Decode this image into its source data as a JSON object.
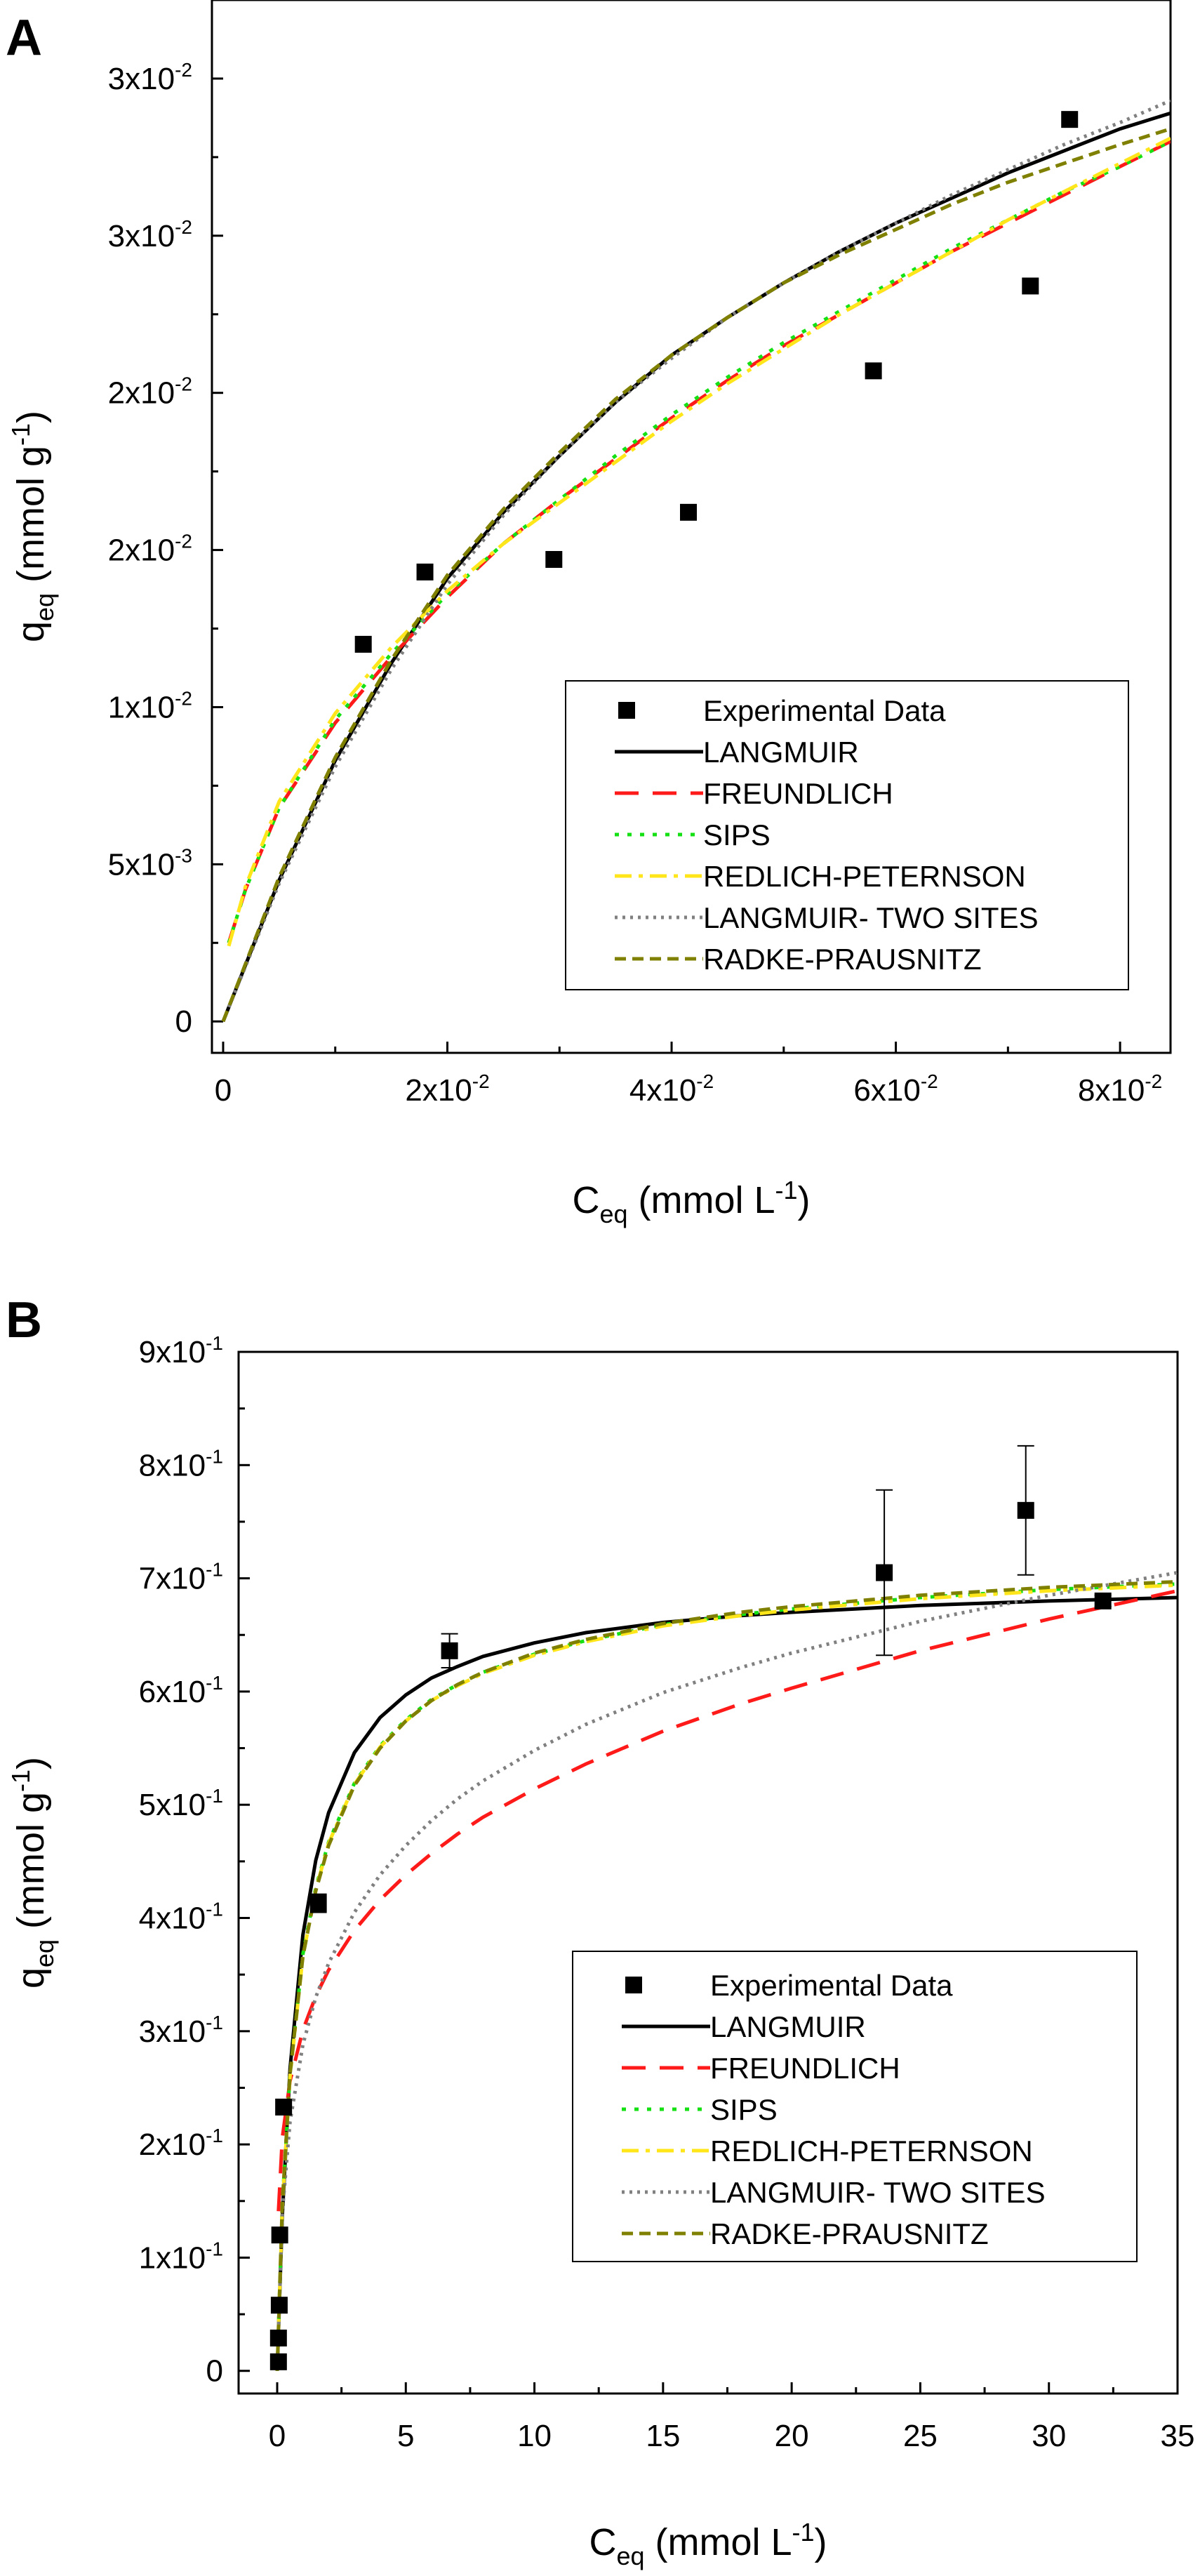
{
  "colors": {
    "experimental": "#000000",
    "langmuir": "#000000",
    "freundlich": "#ff1a1a",
    "sips": "#14e014",
    "redlich_peternson": "#ffe61a",
    "langmuir_two_sites": "#808080",
    "radke_prausnitz": "#808000"
  },
  "chart_data": [
    {
      "panel": "A",
      "type": "scatter",
      "xlabel": {
        "base": "C",
        "sub": "eq",
        "unit_prefix": " (mmol L",
        "unit_sup": "-1",
        "unit_suffix": ")"
      },
      "ylabel": {
        "base": "q",
        "sub": "eq",
        "unit_prefix": " (mmol g",
        "unit_sup": "-1",
        "unit_suffix": ")"
      },
      "xlim": [
        -0.001,
        0.0845
      ],
      "ylim": [
        -0.001,
        0.0325
      ],
      "xticks": [
        {
          "value": 0,
          "mant": "0",
          "exp": ""
        },
        {
          "value": 0.02,
          "mant": "2x10",
          "exp": "-2"
        },
        {
          "value": 0.04,
          "mant": "4x10",
          "exp": "-2"
        },
        {
          "value": 0.06,
          "mant": "6x10",
          "exp": "-2"
        },
        {
          "value": 0.08,
          "mant": "8x10",
          "exp": "-2"
        }
      ],
      "yticks": [
        {
          "value": 0,
          "mant": "0",
          "exp": ""
        },
        {
          "value": 0.005,
          "mant": "5x10",
          "exp": "-3"
        },
        {
          "value": 0.01,
          "mant": "1x10",
          "exp": "-2"
        },
        {
          "value": 0.015,
          "mant": "2x10",
          "exp": "-2"
        },
        {
          "value": 0.02,
          "mant": "2x10",
          "exp": "-2"
        },
        {
          "value": 0.025,
          "mant": "3x10",
          "exp": "-2"
        },
        {
          "value": 0.03,
          "mant": "3x10",
          "exp": "-2"
        }
      ],
      "legend_position": "lower-right",
      "series": [
        {
          "key": "experimental",
          "name": "Experimental Data",
          "style": "marker",
          "x": [
            0.0125,
            0.018,
            0.0295,
            0.0415,
            0.058,
            0.072,
            0.0755
          ],
          "y": [
            0.012,
            0.0143,
            0.0147,
            0.0162,
            0.0207,
            0.0234,
            0.0287
          ]
        },
        {
          "key": "langmuir",
          "name": "LANGMUIR",
          "style": "solid",
          "x": [
            0,
            0.005,
            0.01,
            0.015,
            0.02,
            0.025,
            0.03,
            0.035,
            0.04,
            0.045,
            0.05,
            0.055,
            0.06,
            0.065,
            0.07,
            0.075,
            0.08,
            0.0845
          ],
          "y": [
            0,
            0.0045,
            0.0083,
            0.0114,
            0.0141,
            0.0162,
            0.018,
            0.0197,
            0.0212,
            0.0224,
            0.0235,
            0.0245,
            0.0254,
            0.0262,
            0.027,
            0.0277,
            0.0284,
            0.0289
          ]
        },
        {
          "key": "freundlich",
          "name": "FREUNDLICH",
          "style": "dash",
          "x": [
            0.0005,
            0.002,
            0.005,
            0.01,
            0.015,
            0.02,
            0.025,
            0.03,
            0.035,
            0.04,
            0.045,
            0.05,
            0.055,
            0.06,
            0.065,
            0.07,
            0.075,
            0.08,
            0.0845
          ],
          "y": [
            0.0025,
            0.0042,
            0.0068,
            0.0095,
            0.0116,
            0.0135,
            0.0152,
            0.0166,
            0.0179,
            0.0192,
            0.0204,
            0.0215,
            0.0225,
            0.0235,
            0.0245,
            0.0254,
            0.0263,
            0.0272,
            0.028
          ]
        },
        {
          "key": "sips",
          "name": "SIPS",
          "style": "dot",
          "x": [
            0.0005,
            0.002,
            0.005,
            0.01,
            0.015,
            0.02,
            0.025,
            0.03,
            0.035,
            0.04,
            0.045,
            0.05,
            0.055,
            0.06,
            0.065,
            0.07,
            0.075,
            0.08,
            0.0845
          ],
          "y": [
            0.0025,
            0.0042,
            0.0068,
            0.0096,
            0.0117,
            0.0136,
            0.0152,
            0.0166,
            0.018,
            0.0193,
            0.0205,
            0.0216,
            0.0226,
            0.0236,
            0.0246,
            0.0255,
            0.0264,
            0.0272,
            0.028
          ]
        },
        {
          "key": "redlich_peternson",
          "name": "REDLICH-PETERNSON",
          "style": "dashdot",
          "x": [
            0.0005,
            0.002,
            0.005,
            0.01,
            0.015,
            0.02,
            0.025,
            0.03,
            0.035,
            0.04,
            0.045,
            0.05,
            0.055,
            0.06,
            0.065,
            0.07,
            0.075,
            0.08,
            0.0845
          ],
          "y": [
            0.0024,
            0.0043,
            0.007,
            0.0098,
            0.0119,
            0.0137,
            0.0152,
            0.0165,
            0.0178,
            0.0191,
            0.0203,
            0.0214,
            0.0225,
            0.0235,
            0.0245,
            0.0255,
            0.0264,
            0.0273,
            0.0281
          ]
        },
        {
          "key": "langmuir_two_sites",
          "name": "LANGMUIR- TWO SITES",
          "style": "dotted",
          "x": [
            0,
            0.005,
            0.01,
            0.015,
            0.02,
            0.025,
            0.03,
            0.035,
            0.04,
            0.045,
            0.05,
            0.055,
            0.06,
            0.065,
            0.07,
            0.075,
            0.08,
            0.0845
          ],
          "y": [
            0,
            0.0044,
            0.0081,
            0.0112,
            0.0139,
            0.0161,
            0.018,
            0.0197,
            0.0211,
            0.0224,
            0.0235,
            0.0245,
            0.0254,
            0.0263,
            0.0271,
            0.0279,
            0.0286,
            0.0293
          ]
        },
        {
          "key": "radke_prausnitz",
          "name": "RADKE-PRAUSNITZ",
          "style": "shortdash",
          "x": [
            0,
            0.005,
            0.01,
            0.015,
            0.02,
            0.025,
            0.03,
            0.035,
            0.04,
            0.045,
            0.05,
            0.055,
            0.06,
            0.065,
            0.07,
            0.075,
            0.08,
            0.0845
          ],
          "y": [
            0,
            0.0046,
            0.0084,
            0.0115,
            0.0142,
            0.0163,
            0.0181,
            0.0198,
            0.0212,
            0.0224,
            0.0235,
            0.0244,
            0.0252,
            0.026,
            0.0267,
            0.0273,
            0.0279,
            0.0284
          ]
        }
      ]
    },
    {
      "panel": "B",
      "type": "scatter",
      "xlabel": {
        "base": "C",
        "sub": "eq",
        "unit_prefix": " (mmol L",
        "unit_sup": "-1",
        "unit_suffix": ")"
      },
      "ylabel": {
        "base": "q",
        "sub": "eq",
        "unit_prefix": " (mmol g",
        "unit_sup": "-1",
        "unit_suffix": ")"
      },
      "xlim": [
        -1.5,
        35
      ],
      "ylim": [
        -0.02,
        0.9
      ],
      "xticks": [
        {
          "value": 0,
          "mant": "0",
          "exp": ""
        },
        {
          "value": 5,
          "mant": "5",
          "exp": ""
        },
        {
          "value": 10,
          "mant": "10",
          "exp": ""
        },
        {
          "value": 15,
          "mant": "15",
          "exp": ""
        },
        {
          "value": 20,
          "mant": "20",
          "exp": ""
        },
        {
          "value": 25,
          "mant": "25",
          "exp": ""
        },
        {
          "value": 30,
          "mant": "30",
          "exp": ""
        },
        {
          "value": 35,
          "mant": "35",
          "exp": ""
        }
      ],
      "yticks": [
        {
          "value": 0,
          "mant": "0",
          "exp": ""
        },
        {
          "value": 0.1,
          "mant": "1x10",
          "exp": "-1"
        },
        {
          "value": 0.2,
          "mant": "2x10",
          "exp": "-1"
        },
        {
          "value": 0.3,
          "mant": "3x10",
          "exp": "-1"
        },
        {
          "value": 0.4,
          "mant": "4x10",
          "exp": "-1"
        },
        {
          "value": 0.5,
          "mant": "5x10",
          "exp": "-1"
        },
        {
          "value": 0.6,
          "mant": "6x10",
          "exp": "-1"
        },
        {
          "value": 0.7,
          "mant": "7x10",
          "exp": "-1"
        },
        {
          "value": 0.8,
          "mant": "8x10",
          "exp": "-1"
        },
        {
          "value": 0.9,
          "mant": "9x10",
          "exp": "-1"
        }
      ],
      "legend_position": "lower-right",
      "series": [
        {
          "key": "experimental",
          "name": "Experimental Data",
          "style": "marker",
          "x": [
            0.05,
            0.05,
            0.08,
            0.1,
            0.25,
            1.6,
            6.7,
            23.6,
            29.1,
            32.1
          ],
          "y": [
            0.008,
            0.029,
            0.058,
            0.12,
            0.233,
            0.413,
            0.636,
            0.705,
            0.76,
            0.68
          ],
          "err": [
            0,
            0,
            0,
            0,
            0,
            0.008,
            0.015,
            0.073,
            0.057,
            0.005
          ]
        },
        {
          "key": "langmuir",
          "name": "LANGMUIR",
          "style": "solid",
          "x": [
            0,
            0.2,
            0.5,
            1,
            1.5,
            2,
            3,
            4,
            5,
            6,
            7,
            8,
            10,
            12,
            15,
            18,
            20,
            25,
            30,
            35
          ],
          "y": [
            0,
            0.137,
            0.267,
            0.385,
            0.451,
            0.493,
            0.546,
            0.577,
            0.597,
            0.612,
            0.622,
            0.631,
            0.643,
            0.652,
            0.661,
            0.667,
            0.67,
            0.676,
            0.68,
            0.683
          ]
        },
        {
          "key": "freundlich",
          "name": "FREUNDLICH",
          "style": "dash",
          "x": [
            0.05,
            0.2,
            0.5,
            1,
            1.5,
            2,
            3,
            4,
            5,
            6,
            7,
            8,
            10,
            12,
            15,
            18,
            20,
            25,
            30,
            35
          ],
          "y": [
            0.141,
            0.206,
            0.256,
            0.301,
            0.331,
            0.354,
            0.389,
            0.416,
            0.438,
            0.457,
            0.474,
            0.489,
            0.514,
            0.536,
            0.565,
            0.589,
            0.603,
            0.636,
            0.664,
            0.689
          ]
        },
        {
          "key": "sips",
          "name": "SIPS",
          "style": "dot",
          "x": [
            0,
            0.2,
            0.5,
            1,
            1.5,
            2,
            3,
            4,
            5,
            6,
            7,
            8,
            10,
            12,
            15,
            18,
            20,
            25,
            30,
            35
          ],
          "y": [
            0,
            0.148,
            0.262,
            0.368,
            0.427,
            0.467,
            0.519,
            0.552,
            0.575,
            0.593,
            0.606,
            0.617,
            0.633,
            0.645,
            0.659,
            0.668,
            0.673,
            0.683,
            0.69,
            0.695
          ]
        },
        {
          "key": "redlich_peternson",
          "name": "REDLICH-PETERNSON",
          "style": "dashdot",
          "x": [
            0,
            0.2,
            0.5,
            1,
            1.5,
            2,
            3,
            4,
            5,
            6,
            7,
            8,
            10,
            12,
            15,
            18,
            20,
            25,
            30,
            35
          ],
          "y": [
            0,
            0.145,
            0.26,
            0.366,
            0.425,
            0.466,
            0.518,
            0.551,
            0.574,
            0.592,
            0.605,
            0.616,
            0.632,
            0.644,
            0.658,
            0.667,
            0.672,
            0.682,
            0.689,
            0.694
          ]
        },
        {
          "key": "langmuir_two_sites",
          "name": "LANGMUIR- TWO SITES",
          "style": "dotted",
          "x": [
            0,
            0.2,
            0.5,
            1,
            1.5,
            2,
            3,
            4,
            5,
            6,
            7,
            8,
            10,
            12,
            15,
            18,
            20,
            25,
            30,
            35
          ],
          "y": [
            0,
            0.14,
            0.22,
            0.288,
            0.33,
            0.36,
            0.405,
            0.438,
            0.464,
            0.486,
            0.505,
            0.521,
            0.548,
            0.571,
            0.599,
            0.621,
            0.634,
            0.662,
            0.685,
            0.705
          ]
        },
        {
          "key": "radke_prausnitz",
          "name": "RADKE-PRAUSNITZ",
          "style": "shortdash",
          "x": [
            0,
            0.2,
            0.5,
            1,
            1.5,
            2,
            3,
            4,
            5,
            6,
            7,
            8,
            10,
            12,
            15,
            18,
            20,
            25,
            30,
            35
          ],
          "y": [
            0,
            0.148,
            0.262,
            0.366,
            0.424,
            0.464,
            0.517,
            0.55,
            0.574,
            0.592,
            0.606,
            0.617,
            0.634,
            0.646,
            0.66,
            0.67,
            0.675,
            0.685,
            0.692,
            0.697
          ]
        }
      ]
    }
  ]
}
